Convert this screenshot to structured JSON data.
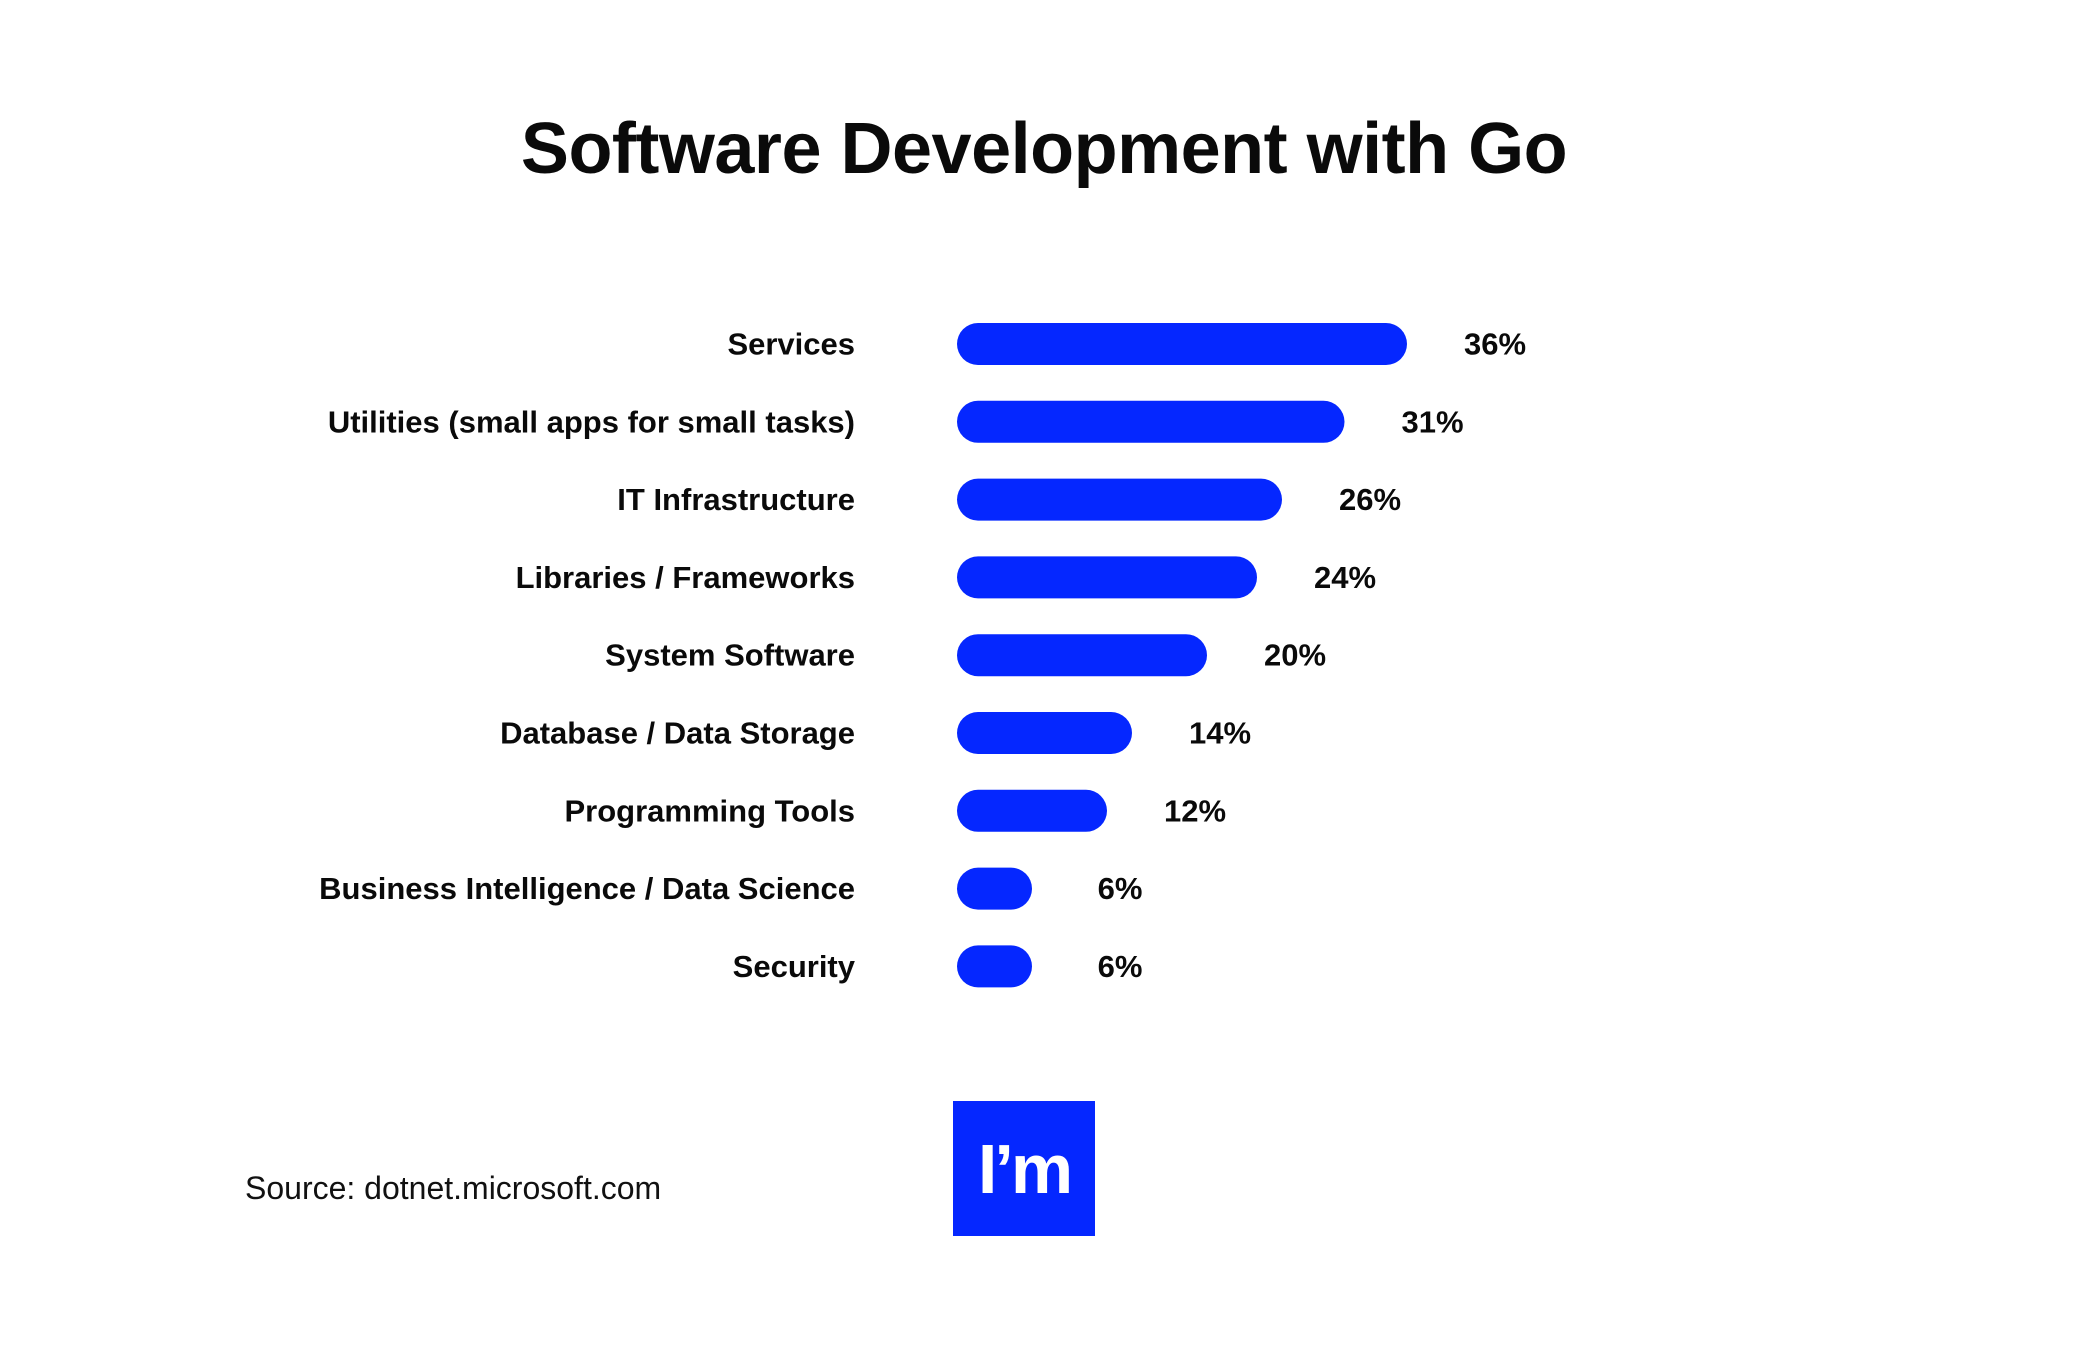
{
  "title": "Software Development with Go",
  "source": "Source: dotnet.microsoft.com",
  "logo": {
    "text": "I’m",
    "color": "#0527FF"
  },
  "colors": {
    "bar": "#0527FF",
    "text": "#0a0a0a",
    "background": "#ffffff"
  },
  "chart_data": {
    "type": "bar",
    "orientation": "horizontal",
    "title": "Software Development with Go",
    "categories": [
      "Services",
      "Utilities (small apps for small tasks)",
      "IT Infrastructure",
      "Libraries / Frameworks",
      "System Software",
      "Database /  Data Storage",
      "Programming Tools",
      "Business Intelligence / Data Science",
      "Security"
    ],
    "values": [
      36,
      31,
      26,
      24,
      20,
      14,
      12,
      6,
      6
    ],
    "value_labels": [
      "36%",
      "31%",
      "26%",
      "24%",
      "20%",
      "14%",
      "12%",
      "6%",
      "6%"
    ],
    "unit": "%",
    "grid": false,
    "legend": "none"
  }
}
